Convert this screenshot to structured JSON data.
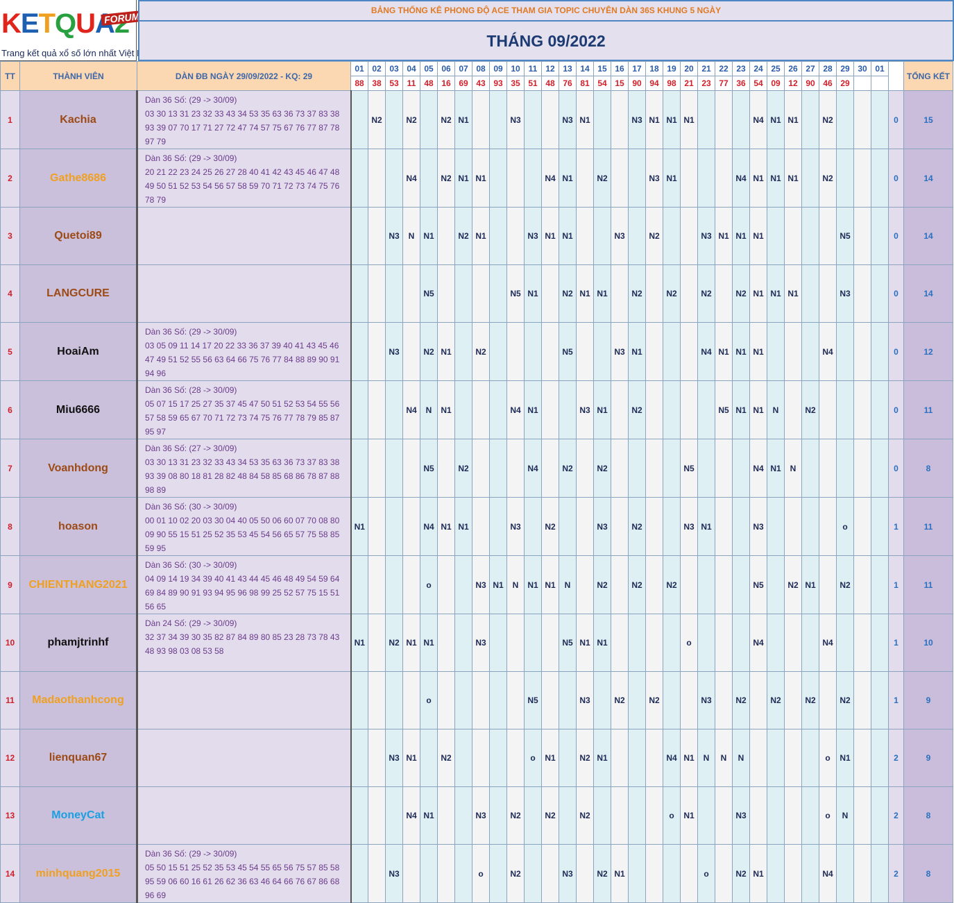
{
  "logo": {
    "text": "KETQUA2",
    "forum": "FORUM",
    "tagline": "Trang kết quả xổ số lớn nhất Việt Nam"
  },
  "header": {
    "title": "BẢNG THỐNG KÊ PHONG ĐỘ ACE THAM GIA TOPIC CHUYÊN DÀN 36S KHUNG 5 NGÀY",
    "month": "THÁNG 09/2022"
  },
  "columns": {
    "tt": "TT",
    "member": "THÀNH VIÊN",
    "dan": "DÀN ĐB NGÀY 29/09/2022 - KQ: 29",
    "summary": "TỔNG KẾT"
  },
  "days": [
    "01",
    "02",
    "03",
    "04",
    "05",
    "06",
    "07",
    "08",
    "09",
    "10",
    "11",
    "12",
    "13",
    "14",
    "15",
    "16",
    "17",
    "18",
    "19",
    "20",
    "21",
    "22",
    "23",
    "24",
    "25",
    "26",
    "27",
    "28",
    "29",
    "30",
    "01"
  ],
  "results": [
    "88",
    "38",
    "53",
    "11",
    "48",
    "16",
    "69",
    "43",
    "93",
    "35",
    "51",
    "48",
    "76",
    "81",
    "54",
    "15",
    "90",
    "94",
    "98",
    "21",
    "23",
    "77",
    "36",
    "54",
    "09",
    "12",
    "90",
    "46",
    "29",
    "",
    ""
  ],
  "rows": [
    {
      "tt": "1",
      "name": "Kachia",
      "color": "#9c4a16",
      "dan": [
        "Dàn 36 Số: (29 -> 30/09)",
        "03 30 13 31 23 32 33 43 34 53 35 63 36 73 37 83 38",
        "93 39 07 70 17 71 27 72 47 74 57 75 67 76 77 87 78",
        "97 79"
      ],
      "marks": [
        "",
        "N2",
        "",
        "N2",
        "",
        "N2",
        "N1",
        "",
        "",
        "N3",
        "",
        "",
        "N3",
        "N1",
        "",
        "",
        "N3",
        "N1",
        "N1",
        "N1",
        "",
        "",
        "",
        "N4",
        "N1",
        "N1",
        "",
        "N2",
        "",
        "",
        ""
      ],
      "s1": "0",
      "s2": "15"
    },
    {
      "tt": "2",
      "name": "Gathe8686",
      "color": "#f0a020",
      "dan": [
        "Dàn 36 Số: (29 -> 30/09)",
        "20 21 22 23 24 25 26 27 28 40 41 42 43 45 46 47 48",
        "49 50 51 52 53 54 56 57 58 59 70 71 72 73 74 75 76",
        "78 79"
      ],
      "marks": [
        "",
        "",
        "",
        "N4",
        "",
        "N2",
        "N1",
        "N1",
        "",
        "",
        "",
        "N4",
        "N1",
        "",
        "N2",
        "",
        "",
        "N3",
        "N1",
        "",
        "",
        "",
        "N4",
        "N1",
        "N1",
        "N1",
        "",
        "N2",
        "",
        "",
        ""
      ],
      "s1": "0",
      "s2": "14"
    },
    {
      "tt": "3",
      "name": "Quetoi89",
      "color": "#9c4a16",
      "dan": [],
      "marks": [
        "",
        "",
        "N3",
        "N",
        "N1",
        "",
        "N2",
        "N1",
        "",
        "",
        "N3",
        "N1",
        "N1",
        "",
        "",
        "N3",
        "",
        "N2",
        "",
        "",
        "N3",
        "N1",
        "N1",
        "N1",
        "",
        "",
        "",
        "",
        "N5",
        "",
        ""
      ],
      "s1": "0",
      "s2": "14"
    },
    {
      "tt": "4",
      "name": "LANGCURE",
      "color": "#9c4a16",
      "dan": [],
      "marks": [
        "",
        "",
        "",
        "",
        "N5",
        "",
        "",
        "",
        "",
        "N5",
        "N1",
        "",
        "N2",
        "N1",
        "N1",
        "",
        "N2",
        "",
        "N2",
        "",
        "N2",
        "",
        "N2",
        "N1",
        "N1",
        "N1",
        "",
        "",
        "N3",
        "",
        ""
      ],
      "s1": "0",
      "s2": "14"
    },
    {
      "tt": "5",
      "name": "HoaiAm",
      "color": "#111111",
      "dan": [
        "Dàn 36 Số: (29 -> 30/09)",
        "03 05 09 11 14 17 20 22 33 36 37 39 40 41 43 45 46",
        "47 49 51 52 55 56 63 64 66 75 76 77 84 88 89 90 91",
        "94 96"
      ],
      "marks": [
        "",
        "",
        "N3",
        "",
        "N2",
        "N1",
        "",
        "N2",
        "",
        "",
        "",
        "",
        "N5",
        "",
        "",
        "N3",
        "N1",
        "",
        "",
        "",
        "N4",
        "N1",
        "N1",
        "N1",
        "",
        "",
        "",
        "N4",
        "",
        "",
        ""
      ],
      "s1": "0",
      "s2": "12"
    },
    {
      "tt": "6",
      "name": "Miu6666",
      "color": "#111111",
      "dan": [
        "Dàn 36 Số: (28 -> 30/09)",
        "05 07 15 17 25 27 35 37 45 47 50 51 52 53 54 55 56",
        "57 58 59 65 67 70 71 72 73 74 75 76 77 78 79 85 87",
        "95 97"
      ],
      "marks": [
        "",
        "",
        "",
        "N4",
        "N",
        "N1",
        "",
        "",
        "",
        "N4",
        "N1",
        "",
        "",
        "N3",
        "N1",
        "",
        "N2",
        "",
        "",
        "",
        "",
        "N5",
        "N1",
        "N1",
        "N",
        "",
        "N2",
        "",
        "",
        "",
        ""
      ],
      "s1": "0",
      "s2": "11"
    },
    {
      "tt": "7",
      "name": "Voanhdong",
      "color": "#9c4a16",
      "dan": [
        "Dàn 36 Số: (27 -> 30/09)",
        "03 30 13 31 23 32 33 43 34 53 35 63 36 73 37 83 38",
        "93 39 08 80 18 81 28 82 48 84 58 85 68 86 78 87 88",
        "98 89"
      ],
      "marks": [
        "",
        "",
        "",
        "",
        "N5",
        "",
        "N2",
        "",
        "",
        "",
        "N4",
        "",
        "N2",
        "",
        "N2",
        "",
        "",
        "",
        "",
        "N5",
        "",
        "",
        "",
        "N4",
        "N1",
        "N",
        "",
        "",
        "",
        "",
        ""
      ],
      "s1": "0",
      "s2": "8"
    },
    {
      "tt": "8",
      "name": "hoason",
      "color": "#9c4a16",
      "dan": [
        "Dàn 36 Số: (30 -> 30/09)",
        "00 01 10 02 20 03 30 04 40 05 50 06 60 07 70 08 80",
        "09 90 55 15 51 25 52 35 53 45 54 56 65 57 75 58 85",
        "59 95"
      ],
      "marks": [
        "N1",
        "",
        "",
        "",
        "N4",
        "N1",
        "N1",
        "",
        "",
        "N3",
        "",
        "N2",
        "",
        "",
        "N3",
        "",
        "N2",
        "",
        "",
        "N3",
        "N1",
        "",
        "",
        "N3",
        "",
        "",
        "",
        "",
        "o",
        "",
        ""
      ],
      "s1": "1",
      "s2": "11"
    },
    {
      "tt": "9",
      "name": "CHIENTHANG2021",
      "color": "#f0a020",
      "dan": [
        "Dàn 36 Số: (30 -> 30/09)",
        "04 09 14 19 34 39 40 41 43 44 45 46 48 49 54 59 64",
        "69 84 89 90 91 93 94 95 96 98 99 25 52 57 75 15 51",
        "56 65"
      ],
      "marks": [
        "",
        "",
        "",
        "",
        "o",
        "",
        "",
        "N3",
        "N1",
        "N",
        "N1",
        "N1",
        "N",
        "",
        "N2",
        "",
        "N2",
        "",
        "N2",
        "",
        "",
        "",
        "",
        "N5",
        "",
        "N2",
        "N1",
        "",
        "N2",
        "",
        ""
      ],
      "s1": "1",
      "s2": "11"
    },
    {
      "tt": "10",
      "name": "phamjtrinhf",
      "color": "#111111",
      "dan": [
        "Dàn 24 Số: (29 -> 30/09)",
        "32 37 34 39 30 35 82 87 84 89 80 85 23 28 73 78 43",
        "48 93 98 03 08 53 58"
      ],
      "marks": [
        "N1",
        "",
        "N2",
        "N1",
        "N1",
        "",
        "",
        "N3",
        "",
        "",
        "",
        "",
        "N5",
        "N1",
        "N1",
        "",
        "",
        "",
        "",
        "o",
        "",
        "",
        "",
        "N4",
        "",
        "",
        "",
        "N4",
        "",
        "",
        ""
      ],
      "s1": "1",
      "s2": "10"
    },
    {
      "tt": "11",
      "name": "Madaothanhcong",
      "color": "#f0a020",
      "dan": [],
      "marks": [
        "",
        "",
        "",
        "",
        "o",
        "",
        "",
        "",
        "",
        "",
        "N5",
        "",
        "",
        "N3",
        "",
        "N2",
        "",
        "N2",
        "",
        "",
        "N3",
        "",
        "N2",
        "",
        "N2",
        "",
        "N2",
        "",
        "N2",
        "",
        ""
      ],
      "s1": "1",
      "s2": "9"
    },
    {
      "tt": "12",
      "name": "lienquan67",
      "color": "#9c4a16",
      "dan": [],
      "marks": [
        "",
        "",
        "N3",
        "N1",
        "",
        "N2",
        "",
        "",
        "",
        "",
        "o",
        "N1",
        "",
        "N2",
        "N1",
        "",
        "",
        "",
        "N4",
        "N1",
        "N",
        "N",
        "N",
        "",
        "",
        "",
        "",
        "o",
        "N1",
        "",
        ""
      ],
      "s1": "2",
      "s2": "9"
    },
    {
      "tt": "13",
      "name": "MoneyCat",
      "color": "#1aa0e0",
      "dan": [],
      "marks": [
        "",
        "",
        "",
        "N4",
        "N1",
        "",
        "",
        "N3",
        "",
        "N2",
        "",
        "N2",
        "",
        "N2",
        "",
        "",
        "",
        "",
        "o",
        "N1",
        "",
        "",
        "N3",
        "",
        "",
        "",
        "",
        "o",
        "N",
        "",
        ""
      ],
      "s1": "2",
      "s2": "8"
    },
    {
      "tt": "14",
      "name": "minhquang2015",
      "color": "#f0a020",
      "dan": [
        "Dàn 36 Số: (29 -> 30/09)",
        "05 50 15 51 25 52 35 53 45 54 55 65 56 75 57 85 58",
        "95 59 06 60 16 61 26 62 36 63 46 64 66 76 67 86 68",
        "96 69"
      ],
      "marks": [
        "",
        "",
        "N3",
        "",
        "",
        "",
        "",
        "o",
        "",
        "N2",
        "",
        "",
        "N3",
        "",
        "N2",
        "N1",
        "",
        "",
        "",
        "",
        "o",
        "",
        "N2",
        "N1",
        "",
        "",
        "",
        "N4",
        "",
        "",
        ""
      ],
      "s1": "2",
      "s2": "8"
    }
  ]
}
